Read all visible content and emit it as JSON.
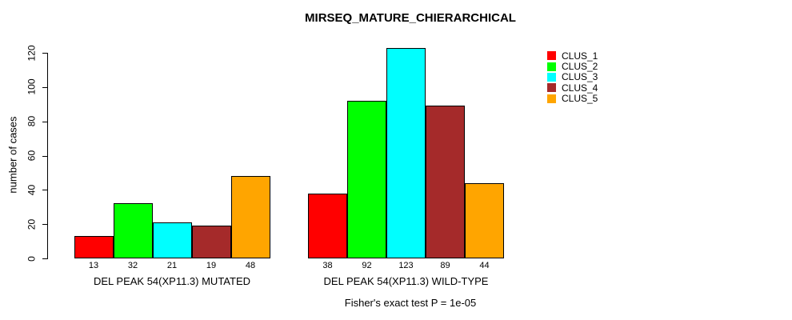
{
  "title": "MIRSEQ_MATURE_CHIERARCHICAL",
  "chart_data": {
    "type": "bar",
    "title": "MIRSEQ_MATURE_CHIERARCHICAL",
    "ylabel": "number of cases",
    "xlabel": "",
    "subtitle": "Fisher's exact test P = 1e-05",
    "ylim": [
      0,
      120
    ],
    "yticks": [
      0,
      20,
      40,
      60,
      80,
      100,
      120
    ],
    "grid": false,
    "legend_position": "right",
    "categories": [
      "DEL PEAK 54(XP11.3) MUTATED",
      "DEL PEAK 54(XP11.3) WILD-TYPE"
    ],
    "series": [
      {
        "name": "CLUS_1",
        "color": "#FF0000",
        "values": [
          13,
          38
        ]
      },
      {
        "name": "CLUS_2",
        "color": "#00FF00",
        "values": [
          32,
          92
        ]
      },
      {
        "name": "CLUS_3",
        "color": "#00FFFF",
        "values": [
          21,
          123
        ]
      },
      {
        "name": "CLUS_4",
        "color": "#A52A2A",
        "values": [
          19,
          89
        ]
      },
      {
        "name": "CLUS_5",
        "color": "#FFA500",
        "values": [
          48,
          44
        ]
      }
    ],
    "bar_value_labels": [
      [
        13,
        32,
        21,
        19,
        48
      ],
      [
        38,
        92,
        123,
        89,
        44
      ]
    ]
  }
}
